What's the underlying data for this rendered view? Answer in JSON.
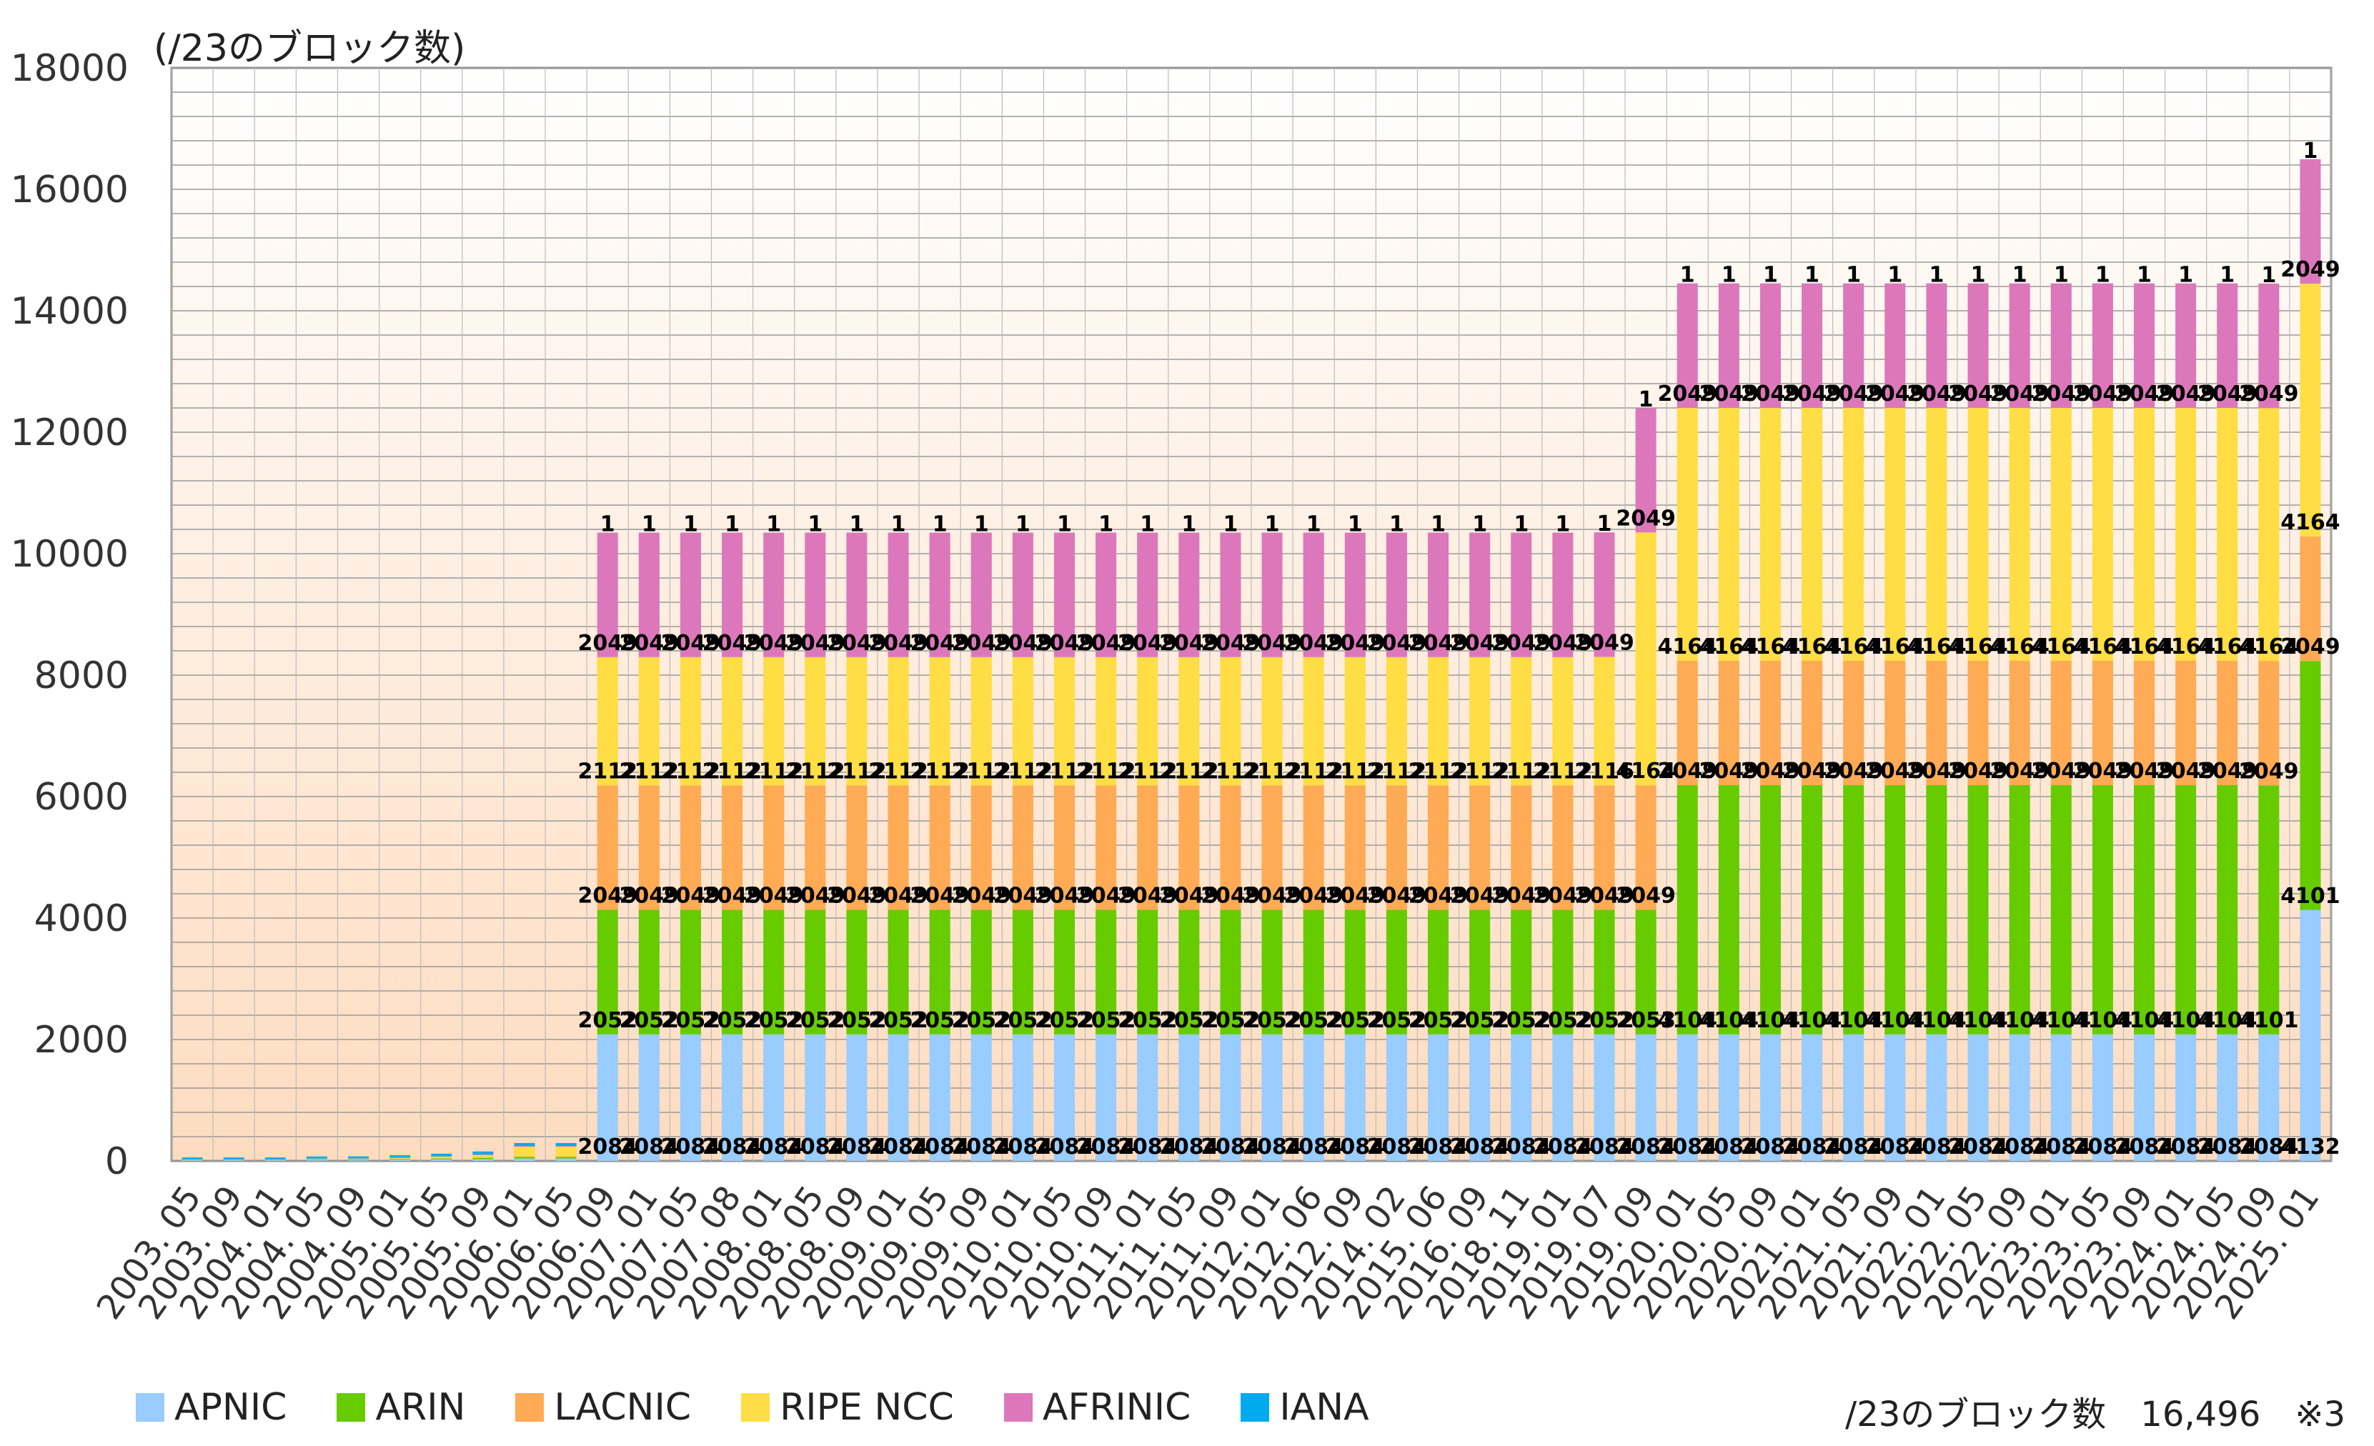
{
  "chart_data": {
    "type": "bar",
    "stacked": true,
    "ylabel": "(/23のブロック数)",
    "ylim": [
      0,
      18000
    ],
    "yticks": [
      0,
      2000,
      4000,
      6000,
      8000,
      10000,
      12000,
      14000,
      16000,
      18000
    ],
    "grid": true,
    "legend_placement": "bottom",
    "categories": [
      "2003.05",
      "2003.09",
      "2004.01",
      "2004.05",
      "2004.09",
      "2005.01",
      "2005.05",
      "2005.09",
      "2006.01",
      "2006.05",
      "2006.09",
      "2007.01",
      "2007.05",
      "2007.08",
      "2008.01",
      "2008.05",
      "2008.09",
      "2009.01",
      "2009.05",
      "2009.09",
      "2010.01",
      "2010.05",
      "2010.09",
      "2011.01",
      "2011.05",
      "2011.09",
      "2012.01",
      "2012.06",
      "2012.09",
      "2014.02",
      "2015.06",
      "2016.09",
      "2018.11",
      "2019.01",
      "2019.07",
      "2019.09",
      "2020.01",
      "2020.05",
      "2020.09",
      "2021.01",
      "2021.05",
      "2021.09",
      "2022.01",
      "2022.05",
      "2022.09",
      "2023.01",
      "2023.05",
      "2023.09",
      "2024.01",
      "2024.05",
      "2024.09",
      "2025.01"
    ],
    "series": [
      {
        "name": "APNIC",
        "color": "#99CCFF",
        "values": [
          12,
          12,
          12,
          15,
          15,
          20,
          25,
          30,
          40,
          40,
          2084,
          2084,
          2084,
          2084,
          2084,
          2084,
          2084,
          2084,
          2084,
          2084,
          2084,
          2084,
          2084,
          2084,
          2084,
          2084,
          2084,
          2084,
          2084,
          2084,
          2084,
          2084,
          2084,
          2084,
          2084,
          2084,
          2084,
          2084,
          2084,
          2084,
          2084,
          2084,
          2084,
          2084,
          2084,
          2084,
          2084,
          2084,
          2084,
          2084,
          2084,
          4132
        ]
      },
      {
        "name": "ARIN",
        "color": "#66CC00",
        "values": [
          8,
          8,
          8,
          10,
          10,
          12,
          15,
          20,
          25,
          25,
          2052,
          2052,
          2052,
          2052,
          2052,
          2052,
          2052,
          2052,
          2052,
          2052,
          2052,
          2052,
          2052,
          2052,
          2052,
          2052,
          2052,
          2052,
          2052,
          2052,
          2052,
          2052,
          2052,
          2052,
          2052,
          2053,
          4104,
          4104,
          4104,
          4104,
          4104,
          4104,
          4104,
          4104,
          4104,
          4104,
          4104,
          4104,
          4104,
          4104,
          4101,
          4101
        ]
      },
      {
        "name": "LACNIC",
        "color": "#FFAA55",
        "values": [
          2,
          2,
          2,
          3,
          3,
          4,
          5,
          8,
          10,
          10,
          2049,
          2049,
          2049,
          2049,
          2049,
          2049,
          2049,
          2049,
          2049,
          2049,
          2049,
          2049,
          2049,
          2049,
          2049,
          2049,
          2049,
          2049,
          2049,
          2049,
          2049,
          2049,
          2049,
          2049,
          2049,
          2049,
          2049,
          2049,
          2049,
          2049,
          2049,
          2049,
          2049,
          2049,
          2049,
          2049,
          2049,
          2049,
          2049,
          2049,
          2049,
          2049
        ]
      },
      {
        "name": "RIPE NCC",
        "color": "#FFDD44",
        "values": [
          4,
          4,
          4,
          8,
          10,
          15,
          25,
          40,
          160,
          160,
          2112,
          2112,
          2112,
          2112,
          2112,
          2112,
          2112,
          2112,
          2112,
          2112,
          2112,
          2112,
          2112,
          2112,
          2112,
          2112,
          2112,
          2112,
          2112,
          2112,
          2112,
          2112,
          2112,
          2112,
          2116,
          4164,
          4164,
          4164,
          4164,
          4164,
          4164,
          4164,
          4164,
          4164,
          4164,
          4164,
          4164,
          4164,
          4164,
          4164,
          4164,
          4164
        ]
      },
      {
        "name": "AFRINIC",
        "color": "#DD77BB",
        "values": [
          1,
          1,
          1,
          2,
          2,
          3,
          5,
          8,
          10,
          10,
          2049,
          2049,
          2049,
          2049,
          2049,
          2049,
          2049,
          2049,
          2049,
          2049,
          2049,
          2049,
          2049,
          2049,
          2049,
          2049,
          2049,
          2049,
          2049,
          2049,
          2049,
          2049,
          2049,
          2049,
          2049,
          2049,
          2049,
          2049,
          2049,
          2049,
          2049,
          2049,
          2049,
          2049,
          2049,
          2049,
          2049,
          2049,
          2049,
          2049,
          2049,
          2049
        ]
      },
      {
        "name": "IANA",
        "color": "#00AAEE",
        "values": [
          30,
          30,
          30,
          35,
          35,
          40,
          45,
          50,
          50,
          50,
          1,
          1,
          1,
          1,
          1,
          1,
          1,
          1,
          1,
          1,
          1,
          1,
          1,
          1,
          1,
          1,
          1,
          1,
          1,
          1,
          1,
          1,
          1,
          1,
          1,
          1,
          1,
          1,
          1,
          1,
          1,
          1,
          1,
          1,
          1,
          1,
          1,
          1,
          1,
          1,
          1,
          1
        ]
      }
    ],
    "data_labels": {
      "min_value": 1000,
      "font_color": "#000000"
    }
  },
  "note": "/23のブロック数　16,496　※3"
}
